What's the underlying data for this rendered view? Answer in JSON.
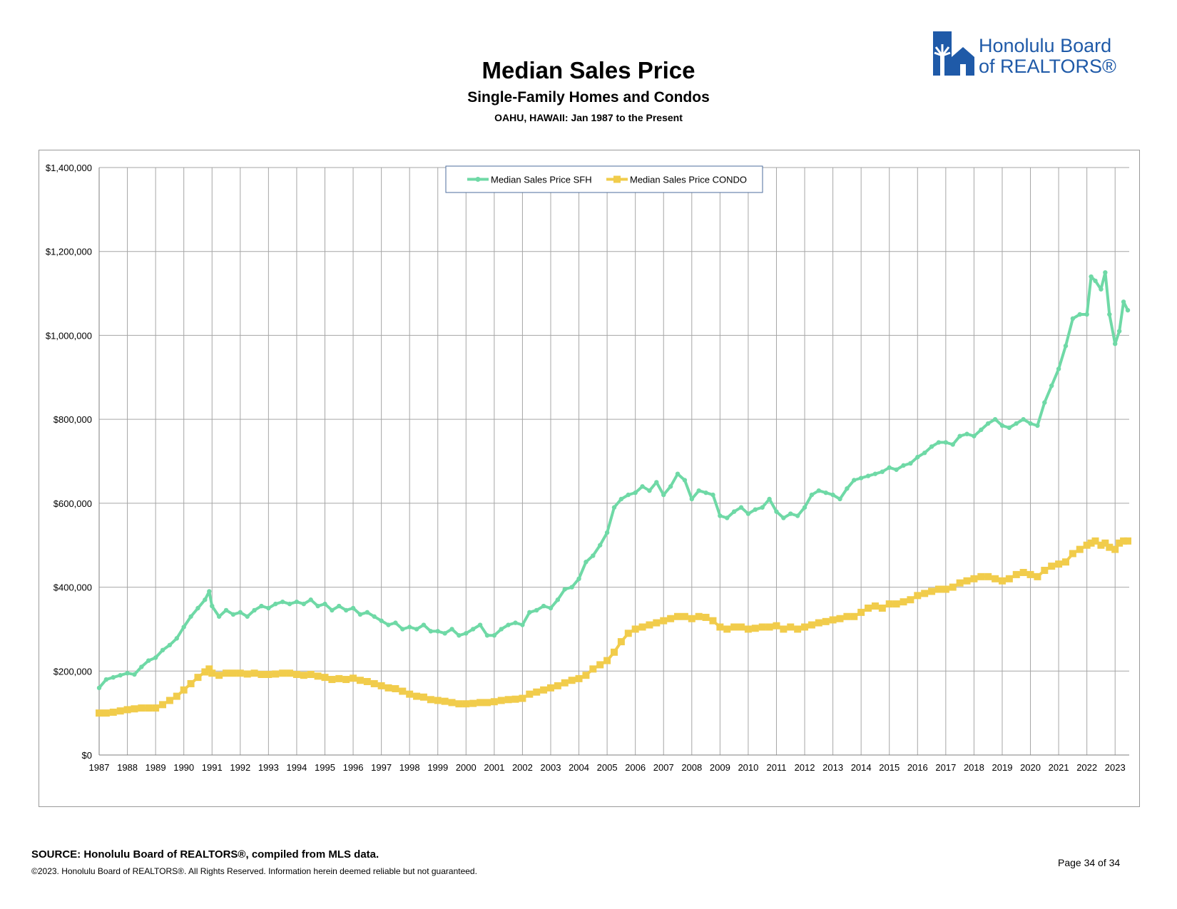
{
  "page": {
    "title": "Median Sales Price",
    "subtitle": "Single-Family Homes and Condos",
    "subtitle2": "OAHU, HAWAII: Jan 1987 to the Present",
    "logo_line1": "Honolulu Board",
    "logo_line2": "of REALTORS®",
    "source": "SOURCE: Honolulu Board of REALTORS®, compiled from MLS data.",
    "copyright": "©2023. Honolulu Board of REALTORS®. All Rights Reserved. Information herein deemed reliable but not guaranteed.",
    "page_number": "Page 34 of 34"
  },
  "colors": {
    "sfh": "#6fd9a6",
    "condo": "#f1cc4b",
    "brand": "#1f5aa8",
    "grid": "#a6a6a6"
  },
  "chart_data": {
    "type": "line",
    "title": "Median Sales Price",
    "xlabel": "",
    "ylabel": "",
    "ylim": [
      0,
      1400000
    ],
    "xlim": [
      1987,
      2023.5
    ],
    "grid": true,
    "legend_position": "top-center",
    "x_tick_labels": [
      "1987",
      "1988",
      "1989",
      "1990",
      "1991",
      "1992",
      "1993",
      "1994",
      "1995",
      "1996",
      "1997",
      "1998",
      "1999",
      "2000",
      "2001",
      "2002",
      "2003",
      "2004",
      "2005",
      "2006",
      "2007",
      "2008",
      "2009",
      "2010",
      "2011",
      "2012",
      "2013",
      "2014",
      "2015",
      "2016",
      "2017",
      "2018",
      "2019",
      "2020",
      "2021",
      "2022",
      "2023"
    ],
    "y_tick_labels": [
      "$0",
      "$200,000",
      "$400,000",
      "$600,000",
      "$800,000",
      "$1,000,000",
      "$1,200,000",
      "$1,400,000"
    ],
    "y_tick_values": [
      0,
      200000,
      400000,
      600000,
      800000,
      1000000,
      1200000,
      1400000
    ],
    "series": [
      {
        "name": "Median Sales Price SFH",
        "x": [
          1987.0,
          1987.25,
          1987.5,
          1987.75,
          1988.0,
          1988.25,
          1988.5,
          1988.75,
          1989.0,
          1989.25,
          1989.5,
          1989.75,
          1990.0,
          1990.25,
          1990.5,
          1990.75,
          1990.9,
          1991.0,
          1991.25,
          1991.5,
          1991.75,
          1992.0,
          1992.25,
          1992.5,
          1992.75,
          1993.0,
          1993.25,
          1993.5,
          1993.75,
          1994.0,
          1994.25,
          1994.5,
          1994.75,
          1995.0,
          1995.25,
          1995.5,
          1995.75,
          1996.0,
          1996.25,
          1996.5,
          1996.75,
          1997.0,
          1997.25,
          1997.5,
          1997.75,
          1998.0,
          1998.25,
          1998.5,
          1998.75,
          1999.0,
          1999.25,
          1999.5,
          1999.75,
          2000.0,
          2000.25,
          2000.5,
          2000.75,
          2001.0,
          2001.25,
          2001.5,
          2001.75,
          2002.0,
          2002.25,
          2002.5,
          2002.75,
          2003.0,
          2003.25,
          2003.5,
          2003.75,
          2004.0,
          2004.25,
          2004.5,
          2004.75,
          2005.0,
          2005.25,
          2005.5,
          2005.75,
          2006.0,
          2006.25,
          2006.5,
          2006.75,
          2007.0,
          2007.25,
          2007.5,
          2007.75,
          2008.0,
          2008.25,
          2008.5,
          2008.75,
          2009.0,
          2009.25,
          2009.5,
          2009.75,
          2010.0,
          2010.25,
          2010.5,
          2010.75,
          2011.0,
          2011.25,
          2011.5,
          2011.75,
          2012.0,
          2012.25,
          2012.5,
          2012.75,
          2013.0,
          2013.25,
          2013.5,
          2013.75,
          2014.0,
          2014.25,
          2014.5,
          2014.75,
          2015.0,
          2015.25,
          2015.5,
          2015.75,
          2016.0,
          2016.25,
          2016.5,
          2016.75,
          2017.0,
          2017.25,
          2017.5,
          2017.75,
          2018.0,
          2018.25,
          2018.5,
          2018.75,
          2019.0,
          2019.25,
          2019.5,
          2019.75,
          2020.0,
          2020.25,
          2020.5,
          2020.75,
          2021.0,
          2021.25,
          2021.5,
          2021.75,
          2022.0,
          2022.15,
          2022.3,
          2022.5,
          2022.65,
          2022.8,
          2023.0,
          2023.15,
          2023.3,
          2023.45
        ],
        "values": [
          160000,
          180000,
          185000,
          190000,
          195000,
          192000,
          210000,
          225000,
          232000,
          250000,
          262000,
          278000,
          305000,
          330000,
          350000,
          370000,
          390000,
          355000,
          330000,
          345000,
          335000,
          340000,
          330000,
          345000,
          355000,
          350000,
          360000,
          365000,
          360000,
          365000,
          360000,
          370000,
          355000,
          360000,
          345000,
          355000,
          345000,
          350000,
          335000,
          340000,
          330000,
          320000,
          310000,
          315000,
          300000,
          305000,
          300000,
          310000,
          295000,
          295000,
          290000,
          300000,
          285000,
          290000,
          300000,
          310000,
          285000,
          285000,
          300000,
          310000,
          315000,
          310000,
          340000,
          345000,
          355000,
          350000,
          370000,
          395000,
          400000,
          420000,
          460000,
          475000,
          500000,
          530000,
          590000,
          610000,
          620000,
          625000,
          640000,
          630000,
          650000,
          620000,
          640000,
          670000,
          655000,
          610000,
          630000,
          625000,
          620000,
          570000,
          565000,
          580000,
          590000,
          575000,
          585000,
          590000,
          610000,
          580000,
          565000,
          575000,
          570000,
          590000,
          620000,
          630000,
          625000,
          620000,
          610000,
          635000,
          655000,
          660000,
          665000,
          670000,
          675000,
          685000,
          680000,
          690000,
          695000,
          710000,
          720000,
          735000,
          745000,
          745000,
          740000,
          760000,
          765000,
          760000,
          775000,
          790000,
          800000,
          785000,
          780000,
          790000,
          800000,
          790000,
          785000,
          840000,
          880000,
          920000,
          975000,
          1040000,
          1050000,
          1050000,
          1140000,
          1130000,
          1110000,
          1150000,
          1050000,
          980000,
          1010000,
          1080000,
          1060000
        ]
      },
      {
        "name": "Median Sales Price CONDO",
        "x": [
          1987.0,
          1987.25,
          1987.5,
          1987.75,
          1988.0,
          1988.25,
          1988.5,
          1988.75,
          1989.0,
          1989.25,
          1989.5,
          1989.75,
          1990.0,
          1990.25,
          1990.5,
          1990.75,
          1990.9,
          1991.0,
          1991.25,
          1991.5,
          1991.75,
          1992.0,
          1992.25,
          1992.5,
          1992.75,
          1993.0,
          1993.25,
          1993.5,
          1993.75,
          1994.0,
          1994.25,
          1994.5,
          1994.75,
          1995.0,
          1995.25,
          1995.5,
          1995.75,
          1996.0,
          1996.25,
          1996.5,
          1996.75,
          1997.0,
          1997.25,
          1997.5,
          1997.75,
          1998.0,
          1998.25,
          1998.5,
          1998.75,
          1999.0,
          1999.25,
          1999.5,
          1999.75,
          2000.0,
          2000.25,
          2000.5,
          2000.75,
          2001.0,
          2001.25,
          2001.5,
          2001.75,
          2002.0,
          2002.25,
          2002.5,
          2002.75,
          2003.0,
          2003.25,
          2003.5,
          2003.75,
          2004.0,
          2004.25,
          2004.5,
          2004.75,
          2005.0,
          2005.25,
          2005.5,
          2005.75,
          2006.0,
          2006.25,
          2006.5,
          2006.75,
          2007.0,
          2007.25,
          2007.5,
          2007.75,
          2008.0,
          2008.25,
          2008.5,
          2008.75,
          2009.0,
          2009.25,
          2009.5,
          2009.75,
          2010.0,
          2010.25,
          2010.5,
          2010.75,
          2011.0,
          2011.25,
          2011.5,
          2011.75,
          2012.0,
          2012.25,
          2012.5,
          2012.75,
          2013.0,
          2013.25,
          2013.5,
          2013.75,
          2014.0,
          2014.25,
          2014.5,
          2014.75,
          2015.0,
          2015.25,
          2015.5,
          2015.75,
          2016.0,
          2016.25,
          2016.5,
          2016.75,
          2017.0,
          2017.25,
          2017.5,
          2017.75,
          2018.0,
          2018.25,
          2018.5,
          2018.75,
          2019.0,
          2019.25,
          2019.5,
          2019.75,
          2020.0,
          2020.25,
          2020.5,
          2020.75,
          2021.0,
          2021.25,
          2021.5,
          2021.75,
          2022.0,
          2022.15,
          2022.3,
          2022.5,
          2022.65,
          2022.8,
          2023.0,
          2023.15,
          2023.3,
          2023.45
        ],
        "values": [
          100000,
          100000,
          102000,
          105000,
          108000,
          110000,
          112000,
          112000,
          112000,
          120000,
          130000,
          140000,
          155000,
          170000,
          185000,
          198000,
          205000,
          195000,
          190000,
          195000,
          195000,
          195000,
          193000,
          195000,
          192000,
          192000,
          193000,
          195000,
          195000,
          192000,
          190000,
          192000,
          188000,
          185000,
          180000,
          182000,
          180000,
          183000,
          178000,
          175000,
          170000,
          165000,
          160000,
          158000,
          152000,
          145000,
          140000,
          138000,
          132000,
          130000,
          128000,
          125000,
          122000,
          122000,
          123000,
          125000,
          125000,
          127000,
          130000,
          132000,
          133000,
          135000,
          145000,
          150000,
          155000,
          160000,
          165000,
          172000,
          178000,
          182000,
          190000,
          205000,
          215000,
          225000,
          245000,
          270000,
          290000,
          300000,
          305000,
          310000,
          315000,
          320000,
          325000,
          330000,
          330000,
          325000,
          330000,
          328000,
          320000,
          305000,
          300000,
          305000,
          305000,
          300000,
          302000,
          305000,
          305000,
          308000,
          300000,
          305000,
          300000,
          305000,
          310000,
          315000,
          318000,
          322000,
          325000,
          330000,
          330000,
          340000,
          350000,
          355000,
          350000,
          360000,
          360000,
          365000,
          370000,
          380000,
          385000,
          390000,
          395000,
          395000,
          400000,
          410000,
          415000,
          420000,
          425000,
          425000,
          420000,
          415000,
          420000,
          430000,
          435000,
          430000,
          425000,
          440000,
          450000,
          455000,
          460000,
          480000,
          490000,
          500000,
          505000,
          510000,
          500000,
          505000,
          495000,
          490000,
          505000,
          510000,
          510000
        ]
      }
    ]
  }
}
